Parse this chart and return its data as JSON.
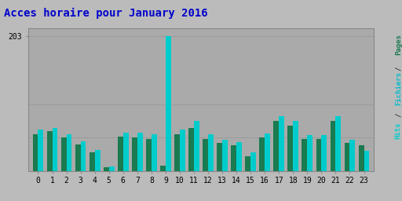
{
  "title": "Acces horaire pour January 2016",
  "hours": [
    0,
    1,
    2,
    3,
    4,
    5,
    6,
    7,
    8,
    9,
    10,
    11,
    12,
    13,
    14,
    15,
    16,
    17,
    18,
    19,
    20,
    21,
    22,
    23
  ],
  "pages": [
    55,
    60,
    50,
    40,
    28,
    5,
    52,
    50,
    48,
    8,
    55,
    65,
    48,
    42,
    38,
    22,
    50,
    75,
    68,
    48,
    48,
    75,
    42,
    38
  ],
  "hits": [
    62,
    65,
    55,
    45,
    32,
    7,
    58,
    58,
    55,
    203,
    62,
    75,
    55,
    47,
    43,
    28,
    56,
    82,
    75,
    54,
    54,
    82,
    47,
    30
  ],
  "color_pages": "#1A7A50",
  "color_hits": "#00CCCC",
  "bg_color": "#BBBBBB",
  "plot_bg_color": "#AAAAAA",
  "title_color": "#0000CC",
  "color_ylabel_pages": "#1A7A50",
  "color_ylabel_slash": "#333333",
  "color_ylabel_fichiers": "#00BBCC",
  "color_ylabel_hits": "#00CCCC",
  "ytick_val": 203,
  "ytick_label": "203",
  "ylim_max": 215,
  "bar_width": 0.38,
  "grid_color": "#999999",
  "spine_color": "#888888",
  "tick_fontsize": 7,
  "title_fontsize": 10
}
